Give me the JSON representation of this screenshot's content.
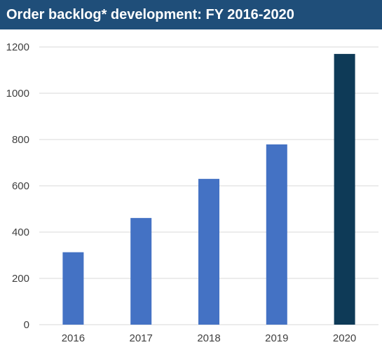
{
  "chart_data": {
    "type": "bar",
    "title": "Order backlog* development: FY 2016-2020",
    "categories": [
      "2016",
      "2017",
      "2018",
      "2019",
      "2020"
    ],
    "values": [
      313,
      461,
      630,
      779,
      1170
    ],
    "ylim": [
      0,
      1200
    ],
    "yticks": [
      0,
      200,
      400,
      600,
      800,
      1000,
      1200
    ],
    "grid": true,
    "colors": {
      "bar": "#4472c4",
      "highlight_bar": "#0e3a57",
      "title_bg": "#1f4e79",
      "grid": "#d9d9d9"
    },
    "highlight_index": 4
  }
}
